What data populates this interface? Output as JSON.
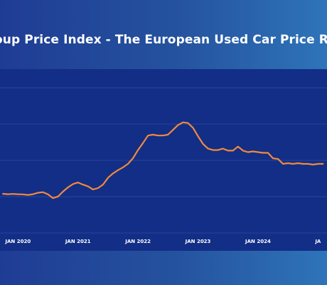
{
  "title": "oup Price Index - The European Used Car Price Report",
  "chart_data": {
    "type": "line",
    "title": "oup Price Index - The European Used Car Price Report",
    "xlabel": "",
    "ylabel": "",
    "x_ticks": [
      "JAN 2020",
      "JAN 2021",
      "JAN 2022",
      "JAN 2023",
      "JAN 2024",
      "JA"
    ],
    "grid": true,
    "line_color": "#f3883e",
    "series": [
      {
        "values": [
          [
            2019.75,
            27.0
          ],
          [
            2019.833,
            26.7
          ],
          [
            2019.917,
            26.9
          ],
          [
            2020.0,
            26.7
          ],
          [
            2020.083,
            26.6
          ],
          [
            2020.167,
            26.2
          ],
          [
            2020.25,
            26.7
          ],
          [
            2020.333,
            27.7
          ],
          [
            2020.417,
            28.1
          ],
          [
            2020.5,
            26.6
          ],
          [
            2020.583,
            24.0
          ],
          [
            2020.667,
            25.1
          ],
          [
            2020.75,
            28.5
          ],
          [
            2020.833,
            31.4
          ],
          [
            2020.917,
            33.7
          ],
          [
            2021.0,
            34.8
          ],
          [
            2021.083,
            33.3
          ],
          [
            2021.167,
            32.1
          ],
          [
            2021.25,
            30.0
          ],
          [
            2021.333,
            30.9
          ],
          [
            2021.417,
            33.3
          ],
          [
            2021.5,
            38.0
          ],
          [
            2021.583,
            41.0
          ],
          [
            2021.667,
            43.3
          ],
          [
            2021.75,
            45.2
          ],
          [
            2021.833,
            47.6
          ],
          [
            2021.917,
            51.5
          ],
          [
            2022.0,
            57.1
          ],
          [
            2022.083,
            61.9
          ],
          [
            2022.167,
            67.1
          ],
          [
            2022.25,
            67.7
          ],
          [
            2022.333,
            67.1
          ],
          [
            2022.417,
            67.1
          ],
          [
            2022.5,
            67.7
          ],
          [
            2022.583,
            71.0
          ],
          [
            2022.667,
            74.3
          ],
          [
            2022.75,
            76.2
          ],
          [
            2022.833,
            75.7
          ],
          [
            2022.917,
            72.4
          ],
          [
            2023.0,
            66.7
          ],
          [
            2023.083,
            61.4
          ],
          [
            2023.167,
            58.1
          ],
          [
            2023.25,
            57.1
          ],
          [
            2023.333,
            57.1
          ],
          [
            2023.417,
            58.1
          ],
          [
            2023.5,
            56.7
          ],
          [
            2023.583,
            56.7
          ],
          [
            2023.667,
            59.5
          ],
          [
            2023.75,
            56.7
          ],
          [
            2023.833,
            55.7
          ],
          [
            2023.917,
            56.2
          ],
          [
            2024.0,
            55.7
          ],
          [
            2024.083,
            55.2
          ],
          [
            2024.167,
            55.2
          ],
          [
            2024.25,
            51.4
          ],
          [
            2024.333,
            51.0
          ],
          [
            2024.417,
            47.6
          ],
          [
            2024.5,
            48.1
          ],
          [
            2024.583,
            47.6
          ],
          [
            2024.667,
            48.1
          ],
          [
            2024.75,
            47.6
          ],
          [
            2024.833,
            47.6
          ],
          [
            2024.917,
            47.1
          ],
          [
            2025.0,
            47.6
          ],
          [
            2025.083,
            47.6
          ]
        ]
      }
    ],
    "x_tick_values": [
      2020,
      2021,
      2022,
      2023,
      2024,
      2025
    ],
    "gridlines": [
      0,
      25,
      50,
      75,
      100
    ],
    "xlim": [
      2019.7,
      2025.15
    ],
    "ylim": [
      0,
      105
    ]
  }
}
